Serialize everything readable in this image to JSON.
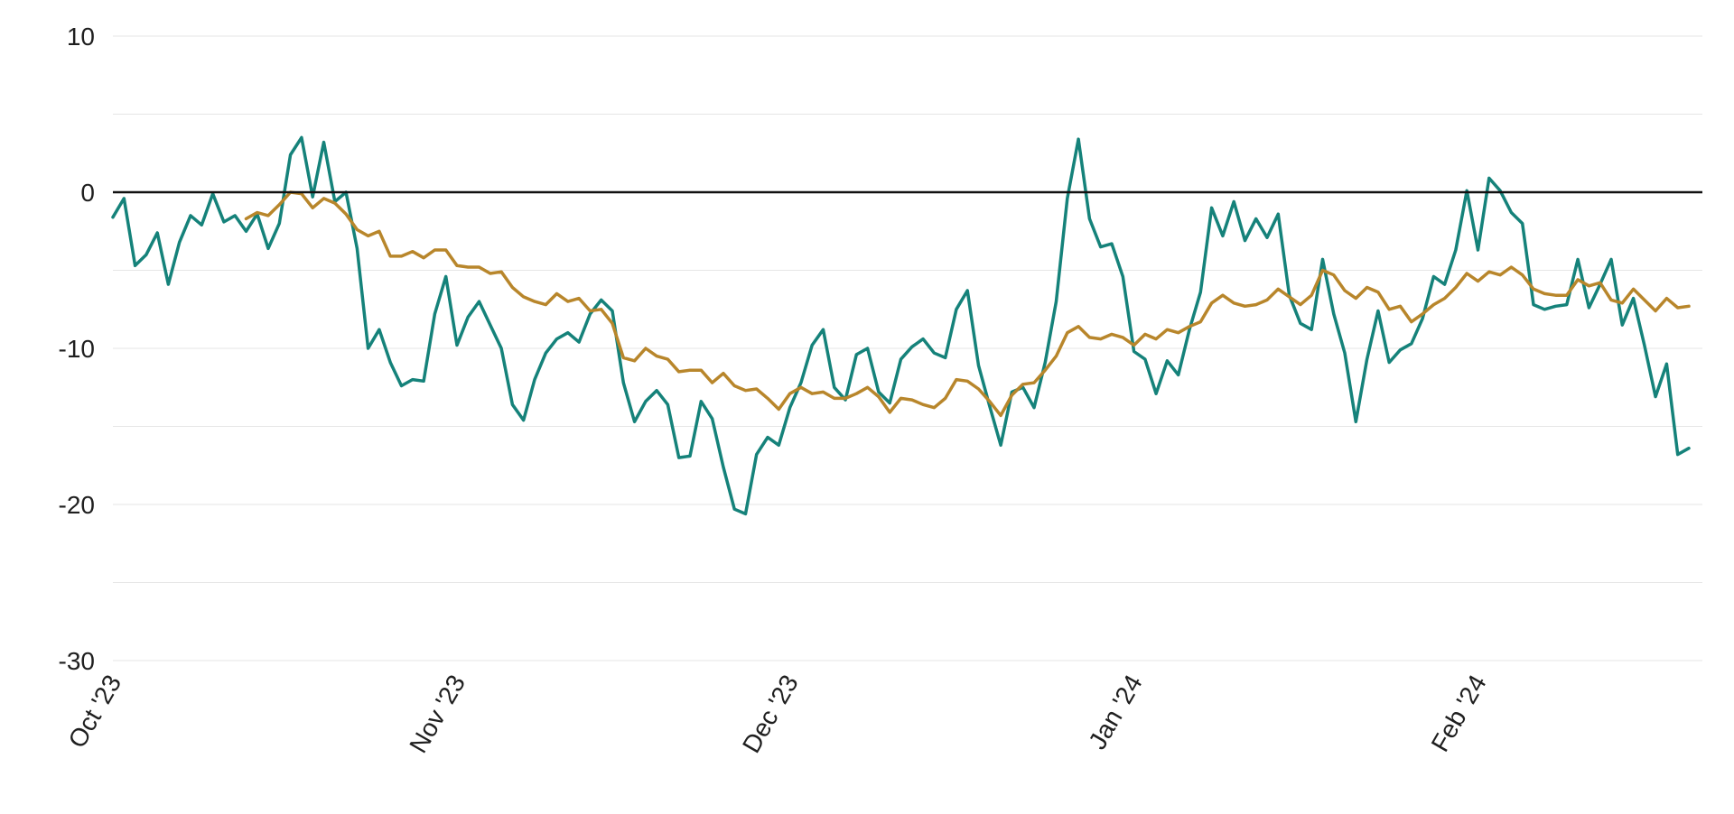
{
  "chart_data": {
    "type": "line",
    "title": "",
    "xlabel": "",
    "ylabel": "",
    "x_tick_labels": [
      "Oct '23",
      "Nov '23",
      "Dec '23",
      "Jan '24",
      "Feb '24"
    ],
    "y_ticks": [
      10,
      0,
      -10,
      -20,
      -30
    ],
    "y_tick_labels": [
      "10",
      "0",
      "-10",
      "-20",
      "-30"
    ],
    "ylim": [
      -30,
      10
    ],
    "x_range_days": [
      0,
      142
    ],
    "grid": true,
    "legend": "none",
    "reference_line": 0,
    "colors": {
      "teal": "#15827a",
      "gold": "#b8862b",
      "zero": "#111111",
      "grid": "#e6e6e6"
    },
    "series": [
      {
        "color": "#15827a",
        "x": [
          0,
          1,
          2,
          3,
          4,
          5,
          6,
          7,
          8,
          9,
          10,
          11,
          12,
          13,
          14,
          15,
          16,
          17,
          18,
          19,
          20,
          21,
          22,
          23,
          24,
          25,
          26,
          27,
          28,
          29,
          30,
          31,
          32,
          33,
          34,
          35,
          36,
          37,
          38,
          39,
          40,
          41,
          42,
          43,
          44,
          45,
          46,
          47,
          48,
          49,
          50,
          51,
          52,
          53,
          54,
          55,
          56,
          57,
          58,
          59,
          60,
          61,
          62,
          63,
          64,
          65,
          66,
          67,
          68,
          69,
          70,
          71,
          72,
          73,
          74,
          75,
          76,
          77,
          78,
          79,
          80,
          81,
          82,
          83,
          84,
          85,
          86,
          87,
          88,
          89,
          90,
          91,
          92,
          93,
          94,
          95,
          96,
          97,
          98,
          99,
          100,
          101,
          102,
          103,
          104,
          105,
          106,
          107,
          108,
          109,
          110,
          111,
          112,
          113,
          114,
          115,
          116,
          117,
          118,
          119,
          120,
          121,
          122,
          123,
          124,
          125,
          126,
          127,
          128,
          129,
          130,
          131,
          132,
          133,
          134,
          135,
          136,
          137,
          138,
          139,
          140,
          141,
          142
        ],
        "y": [
          -1.6,
          -0.4,
          -4.7,
          -4.0,
          -2.6,
          -5.9,
          -3.2,
          -1.5,
          -2.1,
          -0.1,
          -1.9,
          -1.5,
          -2.5,
          -1.4,
          -3.6,
          -2.0,
          2.4,
          3.5,
          -0.3,
          3.2,
          -0.6,
          0.0,
          -3.6,
          -10.0,
          -8.8,
          -10.9,
          -12.4,
          -12.0,
          -12.1,
          -7.8,
          -5.4,
          -9.8,
          -8.0,
          -7.0,
          -8.5,
          -10.0,
          -13.6,
          -14.6,
          -12.0,
          -10.3,
          -9.4,
          -9.0,
          -9.6,
          -7.8,
          -6.9,
          -7.6,
          -12.2,
          -14.7,
          -13.4,
          -12.7,
          -13.6,
          -17.0,
          -16.9,
          -13.4,
          -14.5,
          -17.6,
          -20.3,
          -20.6,
          -16.8,
          -15.7,
          -16.2,
          -13.8,
          -12.2,
          -9.8,
          -8.8,
          -12.5,
          -13.3,
          -10.4,
          -10.0,
          -12.8,
          -13.5,
          -10.7,
          -9.9,
          -9.4,
          -10.3,
          -10.6,
          -7.5,
          -6.3,
          -11.1,
          -13.7,
          -16.2,
          -12.8,
          -12.5,
          -13.8,
          -10.9,
          -7.0,
          -0.4,
          3.4,
          -1.7,
          -3.5,
          -3.3,
          -5.4,
          -10.2,
          -10.7,
          -12.9,
          -10.8,
          -11.7,
          -8.8,
          -6.4,
          -1.0,
          -2.8,
          -0.6,
          -3.1,
          -1.7,
          -2.9,
          -1.4,
          -6.6,
          -8.4,
          -8.8,
          -4.3,
          -7.8,
          -10.3,
          -14.7,
          -10.7,
          -7.6,
          -10.9,
          -10.1,
          -9.7,
          -8.1,
          -5.4,
          -5.9,
          -3.7,
          0.1,
          -3.7,
          0.9,
          0.1,
          -1.3,
          -2.0,
          -7.2,
          -7.5,
          -7.3,
          -7.2,
          -4.3,
          -7.4,
          -5.9,
          -4.3,
          -8.5,
          -6.8,
          -9.8,
          -13.1,
          -11.0,
          -16.8,
          -16.4
        ]
      },
      {
        "color": "#b8862b",
        "x": [
          12,
          13,
          14,
          15,
          16,
          17,
          18,
          19,
          20,
          21,
          22,
          23,
          24,
          25,
          26,
          27,
          28,
          29,
          30,
          31,
          32,
          33,
          34,
          35,
          36,
          37,
          38,
          39,
          40,
          41,
          42,
          43,
          44,
          45,
          46,
          47,
          48,
          49,
          50,
          51,
          52,
          53,
          54,
          55,
          56,
          57,
          58,
          59,
          60,
          61,
          62,
          63,
          64,
          65,
          66,
          67,
          68,
          69,
          70,
          71,
          72,
          73,
          74,
          75,
          76,
          77,
          78,
          79,
          80,
          81,
          82,
          83,
          84,
          85,
          86,
          87,
          88,
          89,
          90,
          91,
          92,
          93,
          94,
          95,
          96,
          97,
          98,
          99,
          100,
          101,
          102,
          103,
          104,
          105,
          106,
          107,
          108,
          109,
          110,
          111,
          112,
          113,
          114,
          115,
          116,
          117,
          118,
          119,
          120,
          121,
          122,
          123,
          124,
          125,
          126,
          127,
          128,
          129,
          130,
          131,
          132,
          133,
          134,
          135,
          136,
          137,
          138,
          139,
          140,
          141,
          142
        ],
        "y": [
          -1.7,
          -1.3,
          -1.5,
          -0.8,
          0.0,
          -0.1,
          -1.0,
          -0.4,
          -0.7,
          -1.4,
          -2.4,
          -2.8,
          -2.5,
          -4.1,
          -4.1,
          -3.8,
          -4.2,
          -3.7,
          -3.7,
          -4.7,
          -4.8,
          -4.8,
          -5.2,
          -5.1,
          -6.1,
          -6.7,
          -7.0,
          -7.2,
          -6.5,
          -7.0,
          -6.8,
          -7.6,
          -7.5,
          -8.4,
          -10.6,
          -10.8,
          -10.0,
          -10.5,
          -10.7,
          -11.5,
          -11.4,
          -11.4,
          -12.2,
          -11.6,
          -12.4,
          -12.7,
          -12.6,
          -13.2,
          -13.9,
          -12.9,
          -12.5,
          -12.9,
          -12.8,
          -13.2,
          -13.2,
          -12.9,
          -12.5,
          -13.1,
          -14.1,
          -13.2,
          -13.3,
          -13.6,
          -13.8,
          -13.2,
          -12.0,
          -12.1,
          -12.6,
          -13.4,
          -14.3,
          -13.0,
          -12.3,
          -12.2,
          -11.4,
          -10.5,
          -9.0,
          -8.6,
          -9.3,
          -9.4,
          -9.1,
          -9.3,
          -9.8,
          -9.1,
          -9.4,
          -8.8,
          -9.0,
          -8.6,
          -8.3,
          -7.1,
          -6.6,
          -7.1,
          -7.3,
          -7.2,
          -6.9,
          -6.2,
          -6.7,
          -7.2,
          -6.6,
          -5.0,
          -5.3,
          -6.3,
          -6.8,
          -6.1,
          -6.4,
          -7.5,
          -7.3,
          -8.3,
          -7.8,
          -7.2,
          -6.8,
          -6.1,
          -5.2,
          -5.7,
          -5.1,
          -5.3,
          -4.8,
          -5.3,
          -6.2,
          -6.5,
          -6.6,
          -6.6,
          -5.6,
          -6.0,
          -5.8,
          -6.9,
          -7.1,
          -6.2,
          -6.9,
          -7.6,
          -6.8,
          -7.4,
          -7.3
        ]
      }
    ]
  }
}
